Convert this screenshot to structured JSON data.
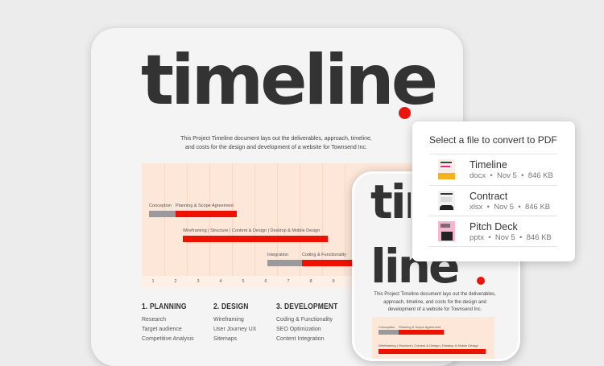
{
  "document": {
    "title": "timeline",
    "description_lines": [
      "This Project Timeline document lays out the deliverables, approach, timeline,",
      "and costs for the design and development of a website for Townsend Inc."
    ],
    "gantt": {
      "rows": [
        {
          "labels": [
            "Conception",
            "Planning & Scope Agreement"
          ]
        },
        {
          "labels": [
            "Wireframing | Structure | Content & Design | Desktop & Mobile Design"
          ]
        },
        {
          "labels": [
            "Integration",
            "Coding & Functionality"
          ]
        }
      ],
      "columns": [
        "1",
        "2",
        "3",
        "4",
        "5",
        "6",
        "7",
        "8",
        "9"
      ]
    },
    "sections": [
      {
        "heading": "1. PLANNING",
        "items": [
          "Research",
          "Target audience",
          "Competitive Analysis"
        ]
      },
      {
        "heading": "2. DESIGN",
        "items": [
          "Wireframing",
          "User Journey UX",
          "Sitemaps"
        ]
      },
      {
        "heading": "3. DEVELOPMENT",
        "items": [
          "Coding & Functionality",
          "SEO Optimization",
          "Content Integration"
        ]
      }
    ],
    "accent_color": "#ee1100"
  },
  "phone": {
    "title_line1": "time",
    "title_line2": "line",
    "description_lines": [
      "This Project Timeline document lays out the deliverables,",
      "approach, timeline, and costs for the design and",
      "development of a website for Townsend Inc."
    ]
  },
  "popup": {
    "title": "Select a file to convert to PDF",
    "files": [
      {
        "name": "Timeline",
        "type": "docx",
        "date": "Nov 5",
        "size": "846 KB"
      },
      {
        "name": "Contract",
        "type": "xlsx",
        "date": "Nov 5",
        "size": "846 KB"
      },
      {
        "name": "Pitch Deck",
        "type": "pptx",
        "date": "Nov 5",
        "size": "846 KB"
      }
    ]
  }
}
